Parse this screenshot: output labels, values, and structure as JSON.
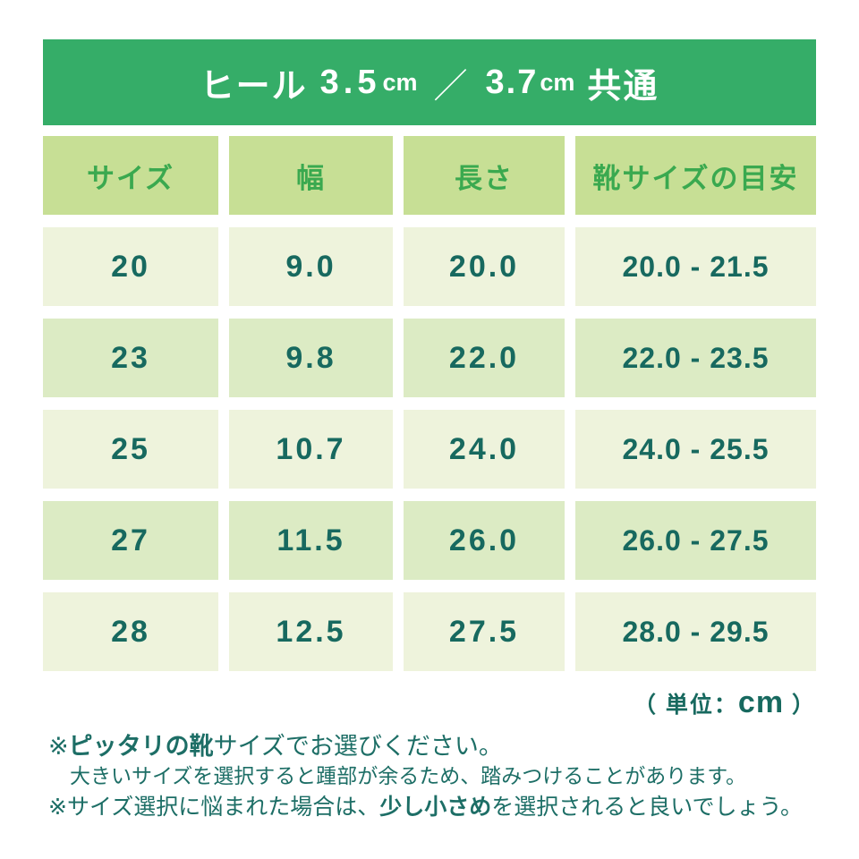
{
  "banner": {
    "prefix": "ヒール",
    "size1": "3.5",
    "unit1": "cm",
    "separator": "／",
    "size2": "3.7",
    "unit2": "cm",
    "suffix": "共通"
  },
  "chart_data": {
    "type": "table",
    "title": "ヒール 3.5cm ／ 3.7cm 共通",
    "columns": [
      "サイズ",
      "幅",
      "長さ",
      "靴サイズの目安"
    ],
    "rows": [
      [
        "20",
        "9.0",
        "20.0",
        "20.0 - 21.5"
      ],
      [
        "23",
        "9.8",
        "22.0",
        "22.0 - 23.5"
      ],
      [
        "25",
        "10.7",
        "24.0",
        "24.0 - 25.5"
      ],
      [
        "27",
        "11.5",
        "26.0",
        "26.0 - 27.5"
      ],
      [
        "28",
        "12.5",
        "27.5",
        "28.0 - 29.5"
      ]
    ],
    "unit": "cm"
  },
  "unit_note": {
    "pre": "（ 単位：",
    "value": "cm",
    "post": " ）"
  },
  "notes": {
    "n1_marker": "※",
    "n1_bold": "ピッタリの靴",
    "n1_rest": "サイズでお選びください。",
    "n1_sub": "大きいサイズを選択すると踵部が余るため、踏みつけることがあります。",
    "n2_marker": "※",
    "n2_pre": "サイズ選択に悩まれた場合は、",
    "n2_bold": "少し小さめ",
    "n2_post": "を選択されると良いでしょう。"
  },
  "colors": {
    "banner_bg": "#35ad68",
    "banner_text": "#ffffff",
    "header_bg": "#c7df95",
    "header_text": "#3aa94f",
    "row_light_bg": "#eef3dc",
    "row_alt_bg": "#dcebc4",
    "cell_text": "#17695f",
    "note_text": "#1d6e66"
  }
}
